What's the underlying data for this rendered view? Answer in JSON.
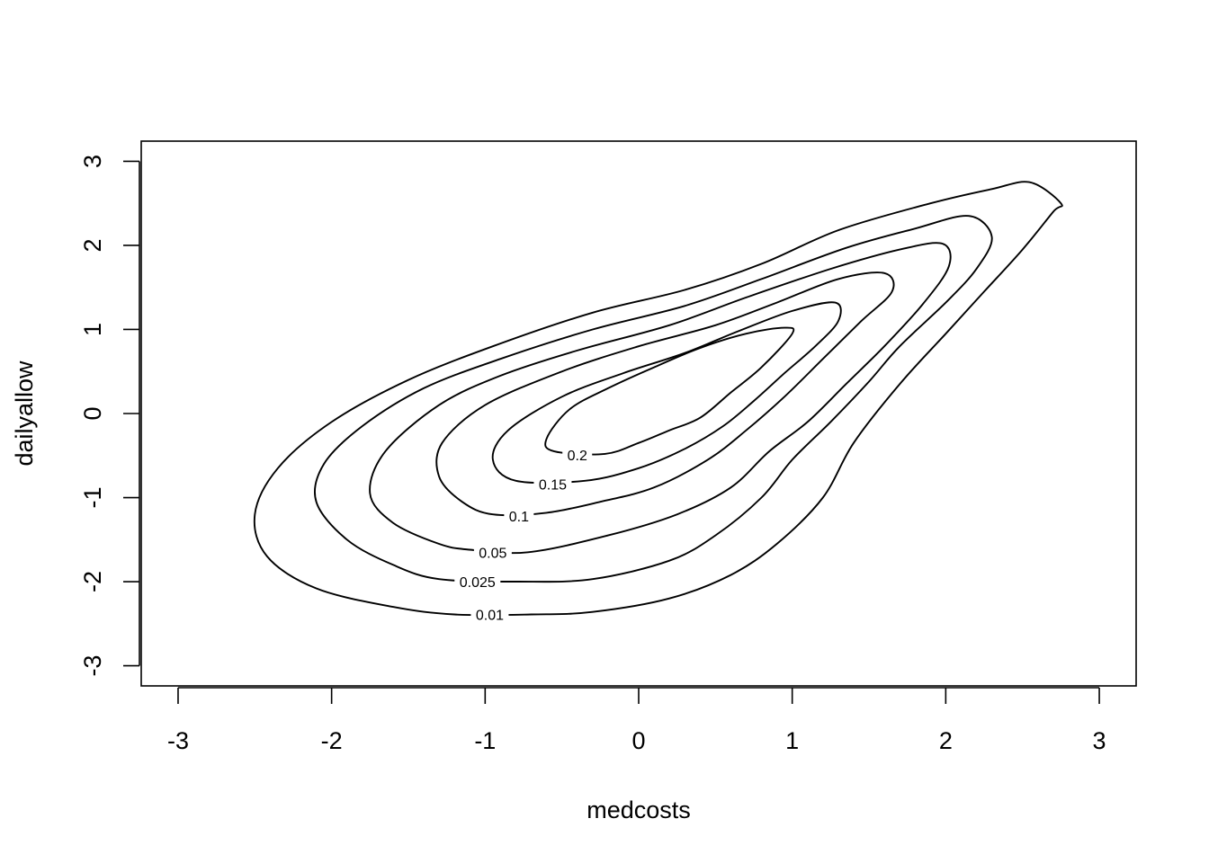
{
  "chart_data": {
    "type": "contour",
    "xlabel": "medcosts",
    "ylabel": "dailyallow",
    "xlim": [
      -3.24,
      3.24
    ],
    "ylim": [
      -3.24,
      3.24
    ],
    "x_ticks": [
      -3,
      -2,
      -1,
      0,
      1,
      2,
      3
    ],
    "y_ticks": [
      -3,
      -2,
      -1,
      0,
      1,
      2,
      3
    ],
    "x_tick_labels": [
      "-3",
      "-2",
      "-1",
      "0",
      "1",
      "2",
      "3"
    ],
    "y_tick_labels": [
      "-3",
      "-2",
      "-1",
      "0",
      "1",
      "2",
      "3"
    ],
    "grid": false,
    "levels": [
      {
        "level": 0.01,
        "label": "0.01",
        "label_at": [
          -0.97,
          -2.39
        ],
        "points": [
          [
            -0.7,
            -2.39
          ],
          [
            -0.3,
            -2.36
          ],
          [
            0.2,
            -2.2
          ],
          [
            0.6,
            -1.92
          ],
          [
            0.9,
            -1.55
          ],
          [
            1.2,
            -1.0
          ],
          [
            1.4,
            -0.35
          ],
          [
            1.7,
            0.35
          ],
          [
            2.0,
            0.95
          ],
          [
            2.25,
            1.45
          ],
          [
            2.5,
            1.95
          ],
          [
            2.7,
            2.4
          ],
          [
            2.75,
            2.5
          ],
          [
            2.55,
            2.75
          ],
          [
            2.3,
            2.67
          ],
          [
            1.9,
            2.5
          ],
          [
            1.3,
            2.18
          ],
          [
            0.8,
            1.78
          ],
          [
            0.3,
            1.47
          ],
          [
            -0.3,
            1.2
          ],
          [
            -0.95,
            0.8
          ],
          [
            -1.5,
            0.4
          ],
          [
            -2.0,
            -0.1
          ],
          [
            -2.35,
            -0.65
          ],
          [
            -2.5,
            -1.2
          ],
          [
            -2.42,
            -1.7
          ],
          [
            -2.1,
            -2.08
          ],
          [
            -1.6,
            -2.3
          ],
          [
            -1.2,
            -2.39
          ]
        ]
      },
      {
        "level": 0.025,
        "label": "0.025",
        "label_at": [
          -1.05,
          -2.0
        ],
        "points": [
          [
            -0.78,
            -2.0
          ],
          [
            -0.3,
            -1.97
          ],
          [
            0.2,
            -1.75
          ],
          [
            0.5,
            -1.45
          ],
          [
            0.8,
            -1.0
          ],
          [
            1.0,
            -0.55
          ],
          [
            1.25,
            -0.1
          ],
          [
            1.5,
            0.38
          ],
          [
            1.7,
            0.8
          ],
          [
            2.0,
            1.32
          ],
          [
            2.2,
            1.72
          ],
          [
            2.3,
            2.1
          ],
          [
            2.15,
            2.35
          ],
          [
            1.8,
            2.2
          ],
          [
            1.35,
            1.97
          ],
          [
            0.8,
            1.6
          ],
          [
            0.3,
            1.28
          ],
          [
            -0.3,
            1.0
          ],
          [
            -0.9,
            0.65
          ],
          [
            -1.4,
            0.3
          ],
          [
            -1.8,
            -0.15
          ],
          [
            -2.05,
            -0.6
          ],
          [
            -2.1,
            -1.05
          ],
          [
            -1.9,
            -1.5
          ],
          [
            -1.6,
            -1.8
          ],
          [
            -1.3,
            -1.97
          ]
        ]
      },
      {
        "level": 0.05,
        "label": "0.05",
        "label_at": [
          -0.95,
          -1.65
        ],
        "points": [
          [
            -0.72,
            -1.65
          ],
          [
            -0.2,
            -1.45
          ],
          [
            0.25,
            -1.2
          ],
          [
            0.6,
            -0.88
          ],
          [
            0.85,
            -0.45
          ],
          [
            1.1,
            -0.1
          ],
          [
            1.35,
            0.35
          ],
          [
            1.6,
            0.8
          ],
          [
            1.85,
            1.3
          ],
          [
            2.02,
            1.75
          ],
          [
            1.98,
            2.02
          ],
          [
            1.7,
            1.95
          ],
          [
            1.25,
            1.72
          ],
          [
            0.7,
            1.38
          ],
          [
            0.2,
            1.05
          ],
          [
            -0.4,
            0.75
          ],
          [
            -0.9,
            0.45
          ],
          [
            -1.3,
            0.1
          ],
          [
            -1.65,
            -0.45
          ],
          [
            -1.75,
            -0.95
          ],
          [
            -1.6,
            -1.3
          ],
          [
            -1.3,
            -1.55
          ],
          [
            -1.1,
            -1.62
          ]
        ]
      },
      {
        "level": 0.1,
        "label": "0.1",
        "label_at": [
          -0.78,
          -1.22
        ],
        "points": [
          [
            -0.6,
            -1.18
          ],
          [
            -0.25,
            -1.05
          ],
          [
            0.1,
            -0.88
          ],
          [
            0.45,
            -0.55
          ],
          [
            0.7,
            -0.2
          ],
          [
            0.95,
            0.2
          ],
          [
            1.2,
            0.65
          ],
          [
            1.45,
            1.1
          ],
          [
            1.65,
            1.45
          ],
          [
            1.6,
            1.67
          ],
          [
            1.3,
            1.6
          ],
          [
            0.9,
            1.32
          ],
          [
            0.5,
            1.05
          ],
          [
            0.0,
            0.8
          ],
          [
            -0.5,
            0.5
          ],
          [
            -1.0,
            0.1
          ],
          [
            -1.28,
            -0.35
          ],
          [
            -1.3,
            -0.75
          ],
          [
            -1.15,
            -1.05
          ],
          [
            -0.95,
            -1.2
          ]
        ]
      },
      {
        "level": 0.15,
        "label": "0.15",
        "label_at": [
          -0.56,
          -0.84
        ],
        "points": [
          [
            -0.35,
            -0.8
          ],
          [
            0.0,
            -0.65
          ],
          [
            0.3,
            -0.42
          ],
          [
            0.55,
            -0.15
          ],
          [
            0.75,
            0.15
          ],
          [
            0.95,
            0.48
          ],
          [
            1.15,
            0.8
          ],
          [
            1.3,
            1.1
          ],
          [
            1.28,
            1.32
          ],
          [
            1.0,
            1.22
          ],
          [
            0.65,
            0.98
          ],
          [
            0.3,
            0.72
          ],
          [
            -0.1,
            0.48
          ],
          [
            -0.5,
            0.2
          ],
          [
            -0.85,
            -0.2
          ],
          [
            -0.95,
            -0.55
          ],
          [
            -0.8,
            -0.8
          ]
        ]
      },
      {
        "level": 0.2,
        "label": "0.2",
        "label_at": [
          -0.4,
          -0.49
        ],
        "points": [
          [
            -0.22,
            -0.48
          ],
          [
            0.0,
            -0.35
          ],
          [
            0.2,
            -0.2
          ],
          [
            0.4,
            -0.05
          ],
          [
            0.6,
            0.25
          ],
          [
            0.8,
            0.55
          ],
          [
            1.0,
            0.95
          ],
          [
            0.95,
            1.02
          ],
          [
            0.7,
            0.95
          ],
          [
            0.4,
            0.78
          ],
          [
            0.1,
            0.55
          ],
          [
            -0.2,
            0.3
          ],
          [
            -0.45,
            0.05
          ],
          [
            -0.6,
            -0.3
          ],
          [
            -0.55,
            -0.45
          ]
        ]
      }
    ]
  }
}
